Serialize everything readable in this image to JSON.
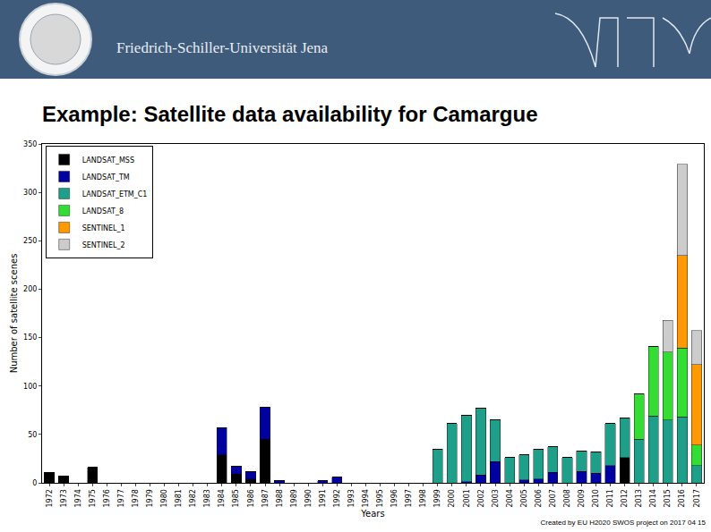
{
  "slide": {
    "institution": "Friedrich-Schiller-Universität Jena",
    "heading": "Example: Satellite data availability for Camargue",
    "footer": "Created by EU H2020 SWOS project on 2017 04 15"
  },
  "chart_data": {
    "type": "bar",
    "stacked": true,
    "grid": false,
    "legend": "upper left",
    "x_label": "Years",
    "y_label": "Number of satellite scenes",
    "categories": [
      "1972",
      "1973",
      "1974",
      "1975",
      "1976",
      "1977",
      "1978",
      "1979",
      "1980",
      "1981",
      "1982",
      "1983",
      "1984",
      "1985",
      "1986",
      "1987",
      "1988",
      "1989",
      "1990",
      "1991",
      "1992",
      "1993",
      "1994",
      "1995",
      "1996",
      "1997",
      "1998",
      "1999",
      "2000",
      "2001",
      "2002",
      "2003",
      "2004",
      "2005",
      "2006",
      "2007",
      "2008",
      "2009",
      "2010",
      "2011",
      "2012",
      "2013",
      "2014",
      "2015",
      "2016",
      "2017"
    ],
    "ylim": [
      0,
      350
    ],
    "yticks": [
      0,
      50,
      100,
      150,
      200,
      250,
      300,
      350
    ],
    "series": [
      {
        "name": "LANDSAT_MSS",
        "color": "#000000",
        "values": [
          11,
          7,
          0,
          16,
          0,
          0,
          0,
          0,
          0,
          0,
          0,
          0,
          29,
          9,
          4,
          45,
          0,
          0,
          0,
          0,
          0,
          0,
          0,
          0,
          0,
          0,
          0,
          0,
          0,
          0,
          0,
          0,
          0,
          0,
          0,
          0,
          0,
          0,
          0,
          0,
          26,
          0,
          0,
          0,
          0,
          0
        ]
      },
      {
        "name": "LANDSAT_TM",
        "color": "#0000a0",
        "values": [
          0,
          0,
          0,
          0,
          0,
          0,
          0,
          0,
          0,
          0,
          0,
          0,
          28,
          8,
          8,
          33,
          2,
          0,
          0,
          2,
          6,
          0,
          0,
          0,
          0,
          0,
          0,
          0,
          0,
          1,
          8,
          22,
          0,
          3,
          4,
          11,
          0,
          12,
          10,
          18,
          0,
          0,
          0,
          0,
          0,
          0
        ]
      },
      {
        "name": "LANDSAT_ETM_C1",
        "color": "#1f9e89",
        "values": [
          0,
          0,
          0,
          0,
          0,
          0,
          0,
          0,
          0,
          0,
          0,
          0,
          0,
          0,
          0,
          0,
          0,
          0,
          0,
          0,
          0,
          0,
          0,
          0,
          0,
          0,
          0,
          35,
          61,
          69,
          69,
          43,
          26,
          26,
          31,
          26,
          26,
          21,
          22,
          43,
          41,
          45,
          69,
          65,
          68,
          18
        ]
      },
      {
        "name": "LANDSAT_8",
        "color": "#33dd33",
        "values": [
          0,
          0,
          0,
          0,
          0,
          0,
          0,
          0,
          0,
          0,
          0,
          0,
          0,
          0,
          0,
          0,
          0,
          0,
          0,
          0,
          0,
          0,
          0,
          0,
          0,
          0,
          0,
          0,
          0,
          0,
          0,
          0,
          0,
          0,
          0,
          0,
          0,
          0,
          0,
          0,
          0,
          47,
          72,
          70,
          71,
          21
        ]
      },
      {
        "name": "SENTINEL_1",
        "color": "#ff9900",
        "values": [
          0,
          0,
          0,
          0,
          0,
          0,
          0,
          0,
          0,
          0,
          0,
          0,
          0,
          0,
          0,
          0,
          0,
          0,
          0,
          0,
          0,
          0,
          0,
          0,
          0,
          0,
          0,
          0,
          0,
          0,
          0,
          0,
          0,
          0,
          0,
          0,
          0,
          0,
          0,
          0,
          0,
          0,
          0,
          0,
          96,
          83
        ]
      },
      {
        "name": "SENTINEL_2",
        "color": "#cccccc",
        "values": [
          0,
          0,
          0,
          0,
          0,
          0,
          0,
          0,
          0,
          0,
          0,
          0,
          0,
          0,
          0,
          0,
          0,
          0,
          0,
          0,
          0,
          0,
          0,
          0,
          0,
          0,
          0,
          0,
          0,
          0,
          0,
          0,
          0,
          0,
          0,
          0,
          0,
          0,
          0,
          0,
          0,
          0,
          0,
          33,
          94,
          35
        ]
      }
    ]
  }
}
